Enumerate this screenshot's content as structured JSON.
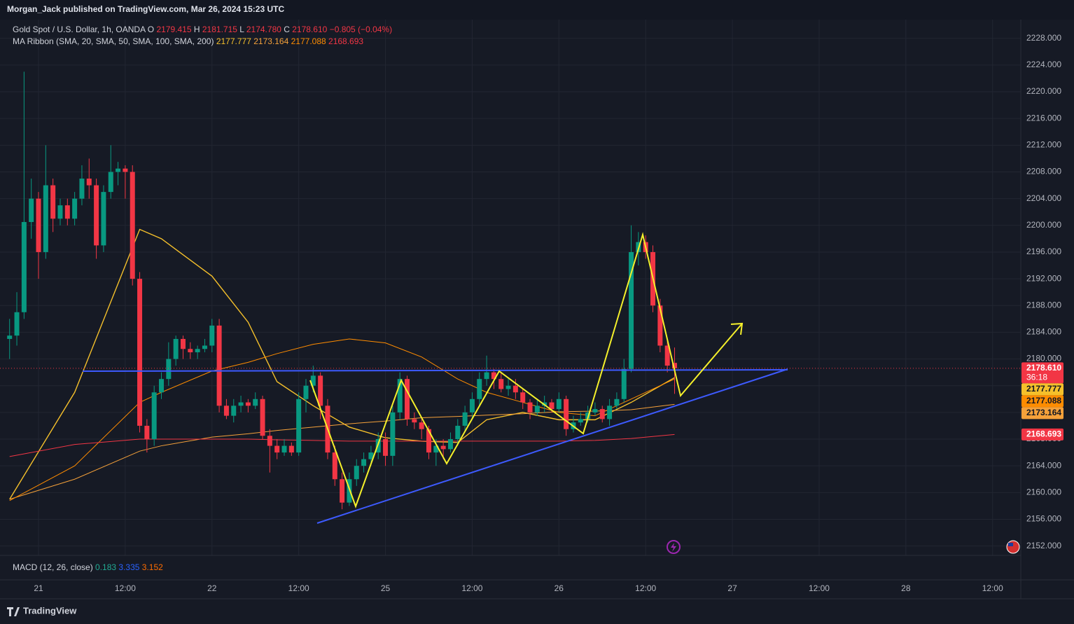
{
  "header": {
    "publisher": "Morgan_Jack published on TradingView.com, Mar 26, 2024 15:23 UTC",
    "symbol": "Gold Spot / U.S. Dollar, 1h, OANDA",
    "ohlc": [
      {
        "label": "O",
        "value": "2179.415"
      },
      {
        "label": "H",
        "value": "2181.715"
      },
      {
        "label": "L",
        "value": "2174.780"
      },
      {
        "label": "C",
        "value": "2178.610"
      }
    ],
    "change": "−0.805 (−0.04%)",
    "countdown": "36:18",
    "ribbon": "MA Ribbon (SMA, 20, SMA, 50, SMA, 100, SMA, 200)",
    "macd": {
      "label": "MACD (12, 26, close)",
      "values": [
        {
          "text": "0.183",
          "color": "#22ab94"
        },
        {
          "text": "3.335",
          "color": "#2962ff"
        },
        {
          "text": "3.152",
          "color": "#ff6d00"
        }
      ]
    },
    "brand": "TradingView"
  },
  "chart_data": {
    "type": "candlestick",
    "up_color": "#089981",
    "down_color": "#f23645",
    "x": [
      -4,
      -3,
      -2,
      -1,
      0,
      1,
      2,
      3,
      4,
      5,
      6,
      7,
      8,
      9,
      10,
      11,
      12,
      13,
      14,
      15,
      16,
      17,
      18,
      19,
      20,
      21,
      22,
      23,
      24,
      25,
      26,
      27,
      28,
      29,
      30,
      31,
      32,
      33,
      34,
      35,
      36,
      37,
      38,
      39,
      40,
      41,
      42,
      43,
      44,
      45,
      46,
      47,
      48,
      49,
      50,
      51,
      52,
      53,
      54,
      55,
      56,
      57,
      58,
      59,
      60,
      61,
      62,
      63,
      64,
      65,
      66,
      67,
      68,
      69,
      70,
      71,
      72,
      73,
      74,
      75,
      76,
      77,
      78,
      79,
      80,
      81,
      82,
      83,
      84,
      85,
      86,
      87,
      88
    ],
    "open": [
      2183,
      2183.5,
      2187,
      2200.5,
      2204,
      2196,
      2206,
      2201,
      2203,
      2201,
      2204,
      2207,
      2206,
      2197,
      2205,
      2208,
      2208.5,
      2208,
      2192,
      2170,
      2168,
      2175,
      2177,
      2180,
      2183,
      2181.5,
      2181,
      2181.5,
      2182,
      2185,
      2173,
      2171.5,
      2173,
      2173.5,
      2173,
      2174,
      2168.5,
      2167,
      2166,
      2167,
      2166,
      2174,
      2176,
      2177.5,
      2173,
      2166,
      2162,
      2158.5,
      2162,
      2164,
      2165,
      2166,
      2168,
      2165.5,
      2172,
      2177,
      2171,
      2170.5,
      2169.5,
      2166,
      2167,
      2166.5,
      2168,
      2170,
      2172,
      2174,
      2177,
      2178,
      2177,
      2175.5,
      2176,
      2175,
      2173.5,
      2172,
      2173,
      2173.5,
      2172.5,
      2174,
      2169.5,
      2170.5,
      2171,
      2172,
      2172.5,
      2171,
      2173,
      2174,
      2178.5,
      2196,
      2197.5,
      2196,
      2188,
      2182,
      2179.415
    ],
    "high": [
      2186,
      2190,
      2223,
      2207,
      2205,
      2212,
      2207,
      2204,
      2204,
      2205,
      2209,
      2210,
      2207,
      2206,
      2212,
      2209.5,
      2209,
      2209,
      2193,
      2171,
      2176,
      2178,
      2182.5,
      2183.5,
      2183.5,
      2182.5,
      2182,
      2183,
      2186,
      2186,
      2174,
      2174,
      2174.5,
      2174,
      2175,
      2174.5,
      2169.5,
      2168,
      2168,
      2167.5,
      2175,
      2177,
      2179,
      2178,
      2174,
      2167,
      2163,
      2163,
      2165,
      2166,
      2167,
      2169,
      2169,
      2173,
      2178,
      2177.5,
      2172,
      2171,
      2170,
      2168,
      2168,
      2169,
      2171,
      2173,
      2175,
      2178,
      2180.5,
      2178.5,
      2178,
      2177,
      2177,
      2175.5,
      2174,
      2174,
      2174.5,
      2174,
      2175,
      2174.5,
      2171.5,
      2172,
      2173,
      2173.5,
      2173,
      2174,
      2175,
      2180,
      2200,
      2199,
      2198.5,
      2197,
      2189,
      2183,
      2181.715
    ],
    "low": [
      2180,
      2182,
      2186,
      2198,
      2192,
      2195,
      2199,
      2200,
      2200,
      2200,
      2203,
      2204,
      2195,
      2196,
      2204,
      2206,
      2204,
      2191,
      2169,
      2166,
      2167,
      2174,
      2176,
      2179,
      2180,
      2180,
      2180,
      2181,
      2181,
      2172,
      2171,
      2170.5,
      2172,
      2172,
      2172.5,
      2168,
      2163,
      2165,
      2165.5,
      2165.5,
      2165.5,
      2172,
      2175,
      2171,
      2165,
      2161,
      2157.5,
      2158,
      2161,
      2163,
      2164,
      2165,
      2164,
      2164,
      2171,
      2170,
      2169.5,
      2168,
      2165,
      2164,
      2165,
      2166,
      2167,
      2169,
      2171,
      2173,
      2176,
      2175.5,
      2175,
      2174.5,
      2174,
      2172.5,
      2171,
      2171.5,
      2172,
      2172,
      2172,
      2168.5,
      2169,
      2170,
      2170.5,
      2171.5,
      2170.5,
      2170,
      2172.5,
      2173.5,
      2178,
      2194,
      2195,
      2187,
      2181,
      2178,
      2174.78
    ],
    "close": [
      2183.5,
      2187,
      2200.5,
      2204,
      2196,
      2206,
      2201,
      2203,
      2201,
      2204,
      2207,
      2206,
      2197,
      2205,
      2208,
      2208.5,
      2208,
      2192,
      2170,
      2168,
      2175,
      2177,
      2180,
      2183,
      2181.5,
      2181,
      2181.5,
      2182,
      2185,
      2173,
      2171.5,
      2173,
      2173.5,
      2173,
      2174,
      2168.5,
      2167,
      2166,
      2167,
      2166,
      2174,
      2176,
      2177.5,
      2173,
      2166,
      2162,
      2158.5,
      2162,
      2164,
      2165,
      2166,
      2168,
      2165.5,
      2172,
      2177,
      2171,
      2170.5,
      2169.5,
      2166,
      2167,
      2166.5,
      2168,
      2170,
      2172,
      2174,
      2177,
      2178,
      2177,
      2175.5,
      2176,
      2175,
      2173.5,
      2172,
      2173,
      2173.5,
      2172.5,
      2174,
      2169.5,
      2170.5,
      2171,
      2172,
      2172.5,
      2171,
      2173,
      2174,
      2178.5,
      2196,
      2197.5,
      2196,
      2188,
      2182,
      2179,
      2178.61
    ],
    "ma_x": [
      -4,
      5,
      14,
      17,
      24,
      29,
      33,
      38,
      43,
      48,
      53,
      58,
      62,
      67,
      72,
      77,
      82,
      88
    ],
    "ma": [
      {
        "color": "#f5c02b",
        "last": "2177.777",
        "values": [
          2159,
          2175,
          2199.4,
          2198,
          2192.4,
          2185.5,
          2176.6,
          2173,
          2169.8,
          2168.2,
          2167.7,
          2167.5,
          2170.9,
          2172,
          2170.9,
          2170.9,
          2173.5,
          2177.2
        ]
      },
      {
        "color": "#f5a13a",
        "last": "2173.164",
        "values": [
          2159,
          2162,
          2166.2,
          2167,
          2168.3,
          2168.8,
          2169.3,
          2169.8,
          2170.3,
          2170.7,
          2171.2,
          2171.4,
          2171.6,
          2171.8,
          2172.1,
          2172.2,
          2172.4,
          2173.2
        ]
      },
      {
        "color": "#ff8c00",
        "last": "2177.088",
        "values": [
          2158.8,
          2164,
          2173.5,
          2175,
          2178.2,
          2179.5,
          2180.8,
          2182.2,
          2183,
          2182.4,
          2180.3,
          2177,
          2175,
          2173.5,
          2172,
          2171.5,
          2174,
          2177
        ]
      },
      {
        "color": "#f23645",
        "last": "2168.693",
        "values": [
          2165.4,
          2167.2,
          2168,
          2168,
          2168,
          2168,
          2167.9,
          2167.8,
          2167.7,
          2167.7,
          2167.7,
          2167.7,
          2167.7,
          2167.7,
          2167.7,
          2167.8,
          2168.1,
          2168.7
        ]
      }
    ],
    "xlim": [
      -4.36,
      135.9
    ],
    "xticks": [
      {
        "value": 0,
        "label": "21"
      },
      {
        "value": 12,
        "label": "12:00"
      },
      {
        "value": 24,
        "label": "22"
      },
      {
        "value": 36,
        "label": "12:00"
      },
      {
        "value": 48,
        "label": "25"
      },
      {
        "value": 60,
        "label": "12:00"
      },
      {
        "value": 72,
        "label": "26"
      },
      {
        "value": 84,
        "label": "12:00"
      },
      {
        "value": 96,
        "label": "27"
      },
      {
        "value": 108,
        "label": "12:00"
      },
      {
        "value": 120,
        "label": "28"
      },
      {
        "value": 132,
        "label": "12:00"
      }
    ],
    "ylim": [
      2150.6,
      2230.8
    ],
    "yticks": [
      {
        "value": 2152,
        "label": "2152.000"
      },
      {
        "value": 2156,
        "label": "2156.000"
      },
      {
        "value": 2160,
        "label": "2160.000"
      },
      {
        "value": 2164,
        "label": "2164.000"
      },
      {
        "value": 2168,
        "label": "2168.000"
      },
      {
        "value": 2172,
        "label": "2172.000"
      },
      {
        "value": 2176,
        "label": "2176.000"
      },
      {
        "value": 2180,
        "label": "2180.000"
      },
      {
        "value": 2184,
        "label": "2184.000"
      },
      {
        "value": 2188,
        "label": "2188.000"
      },
      {
        "value": 2192,
        "label": "2192.000"
      },
      {
        "value": 2196,
        "label": "2196.000"
      },
      {
        "value": 2200,
        "label": "2200.000"
      },
      {
        "value": 2204,
        "label": "2204.000"
      },
      {
        "value": 2208,
        "label": "2208.000"
      },
      {
        "value": 2212,
        "label": "2212.000"
      },
      {
        "value": 2216,
        "label": "2216.000"
      },
      {
        "value": 2220,
        "label": "2220.000"
      },
      {
        "value": 2224,
        "label": "2224.000"
      },
      {
        "value": 2228,
        "label": "2228.000"
      }
    ],
    "grid": true
  }
}
